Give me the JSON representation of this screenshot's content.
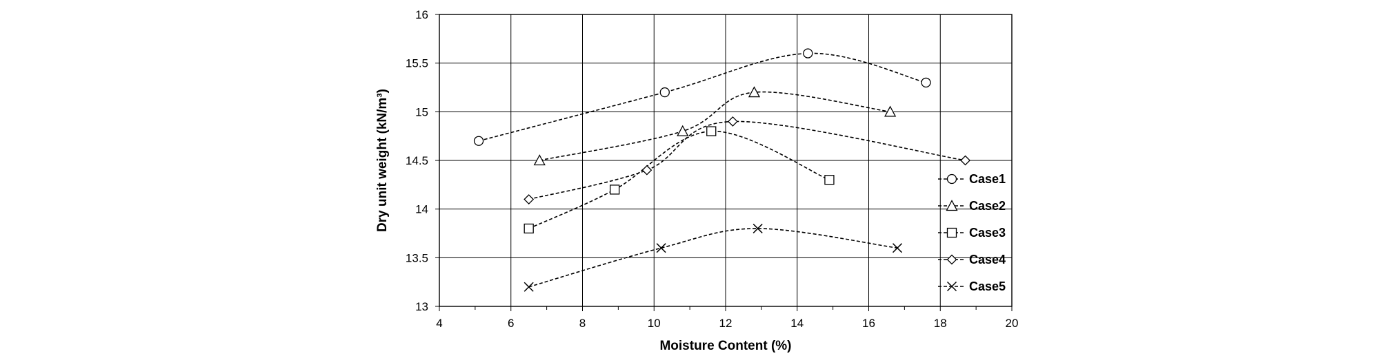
{
  "chart_data": {
    "type": "scatter",
    "title": "",
    "xlabel": "Moisture Content (%)",
    "ylabel": "Dry  unit weight (kN/m³)",
    "xlim": [
      4,
      20
    ],
    "ylim": [
      13,
      16
    ],
    "xticks": [
      4,
      6,
      8,
      10,
      12,
      14,
      16,
      18,
      20
    ],
    "yticks": [
      13,
      13.5,
      14,
      14.5,
      15,
      15.5,
      16
    ],
    "xtick_labels": [
      "4",
      "6",
      "8",
      "10",
      "12",
      "14",
      "16",
      "18",
      "20"
    ],
    "ytick_labels": [
      "13",
      "13.5",
      "14",
      "14.5",
      "15",
      "15.5",
      "16"
    ],
    "grid": true,
    "legend_position": "right",
    "series": [
      {
        "name": "Case1",
        "marker": "circle",
        "x": [
          5.1,
          10.3,
          14.3,
          17.6
        ],
        "y": [
          14.7,
          15.2,
          15.6,
          15.3
        ]
      },
      {
        "name": "Case2",
        "marker": "triangle",
        "x": [
          6.8,
          10.8,
          12.8,
          16.6
        ],
        "y": [
          14.5,
          14.8,
          15.2,
          15.0
        ]
      },
      {
        "name": "Case3",
        "marker": "square",
        "x": [
          6.5,
          8.9,
          11.6,
          14.9
        ],
        "y": [
          13.8,
          14.2,
          14.8,
          14.3
        ]
      },
      {
        "name": "Case4",
        "marker": "diamond",
        "x": [
          6.5,
          9.8,
          12.2,
          18.7
        ],
        "y": [
          14.1,
          14.4,
          14.9,
          14.5
        ]
      },
      {
        "name": "Case5",
        "marker": "x",
        "x": [
          6.5,
          10.2,
          12.9,
          16.8
        ],
        "y": [
          13.2,
          13.6,
          13.8,
          13.6
        ]
      }
    ]
  }
}
